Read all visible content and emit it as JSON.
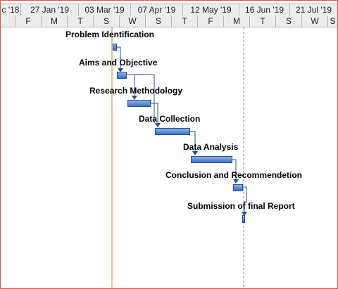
{
  "timescale": {
    "major_labels": [
      "c '18",
      "27 Jan '19",
      "03 Mar '19",
      "07 Apr '19",
      "12 May '19",
      "16 Jun '19",
      "21 Jul '19"
    ],
    "minor_labels": [
      "F",
      "M",
      "T",
      "S",
      "W",
      "S",
      "T",
      "F",
      "M",
      "T",
      "S",
      "W",
      "S"
    ]
  },
  "tasks": [
    {
      "id": "problem",
      "label": "Problem Identification"
    },
    {
      "id": "aims",
      "label": "Aims and Objective"
    },
    {
      "id": "research",
      "label": "Research Methodology"
    },
    {
      "id": "collection",
      "label": "Data Collection"
    },
    {
      "id": "analysis",
      "label": "Data Analysis"
    },
    {
      "id": "conclusion",
      "label": "Conclusion and Recommendetion"
    },
    {
      "id": "submission",
      "label": "Submission of final Report"
    }
  ],
  "colors": {
    "bar": "#3c6fc6",
    "today_line": "#e07b39",
    "status_line": "#8a8a8a",
    "header_bg": "#ececec"
  }
}
